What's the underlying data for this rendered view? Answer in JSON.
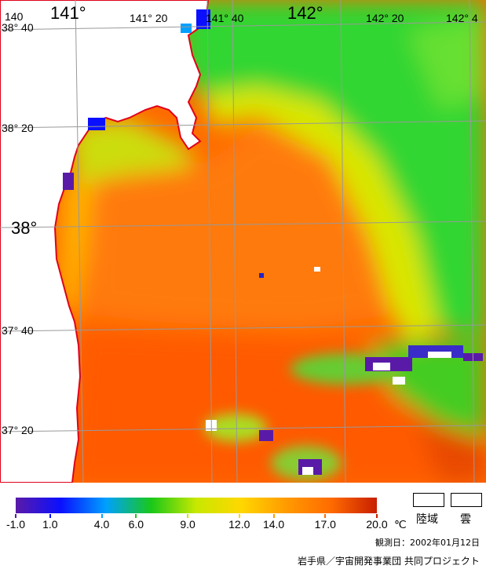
{
  "map": {
    "longitude_labels": [
      "140",
      "141°",
      "141° 20",
      "141° 40",
      "142°",
      "142° 20",
      "142° 4"
    ],
    "latitude_labels": [
      "38° 40",
      "38° 20",
      "38°",
      "37° 40",
      "37° 20"
    ]
  },
  "legend": {
    "ticks": [
      "-1.0",
      "1.0",
      "4.0",
      "6.0",
      "9.0",
      "12.0",
      "14.0",
      "17.0",
      "20.0"
    ],
    "unit": "℃",
    "land_label": "陸域",
    "cloud_label": "雲",
    "colors": [
      "#5a1aa8",
      "#0a10ff",
      "#00a0ff",
      "#19c819",
      "#c8e800",
      "#ffd700",
      "#ff9a00",
      "#ff6a00",
      "#c81e00"
    ]
  },
  "footer": {
    "date": "観測日：2002年01月12日",
    "credit": "岩手県／宇宙開発事業団 共同プロジェクト"
  }
}
